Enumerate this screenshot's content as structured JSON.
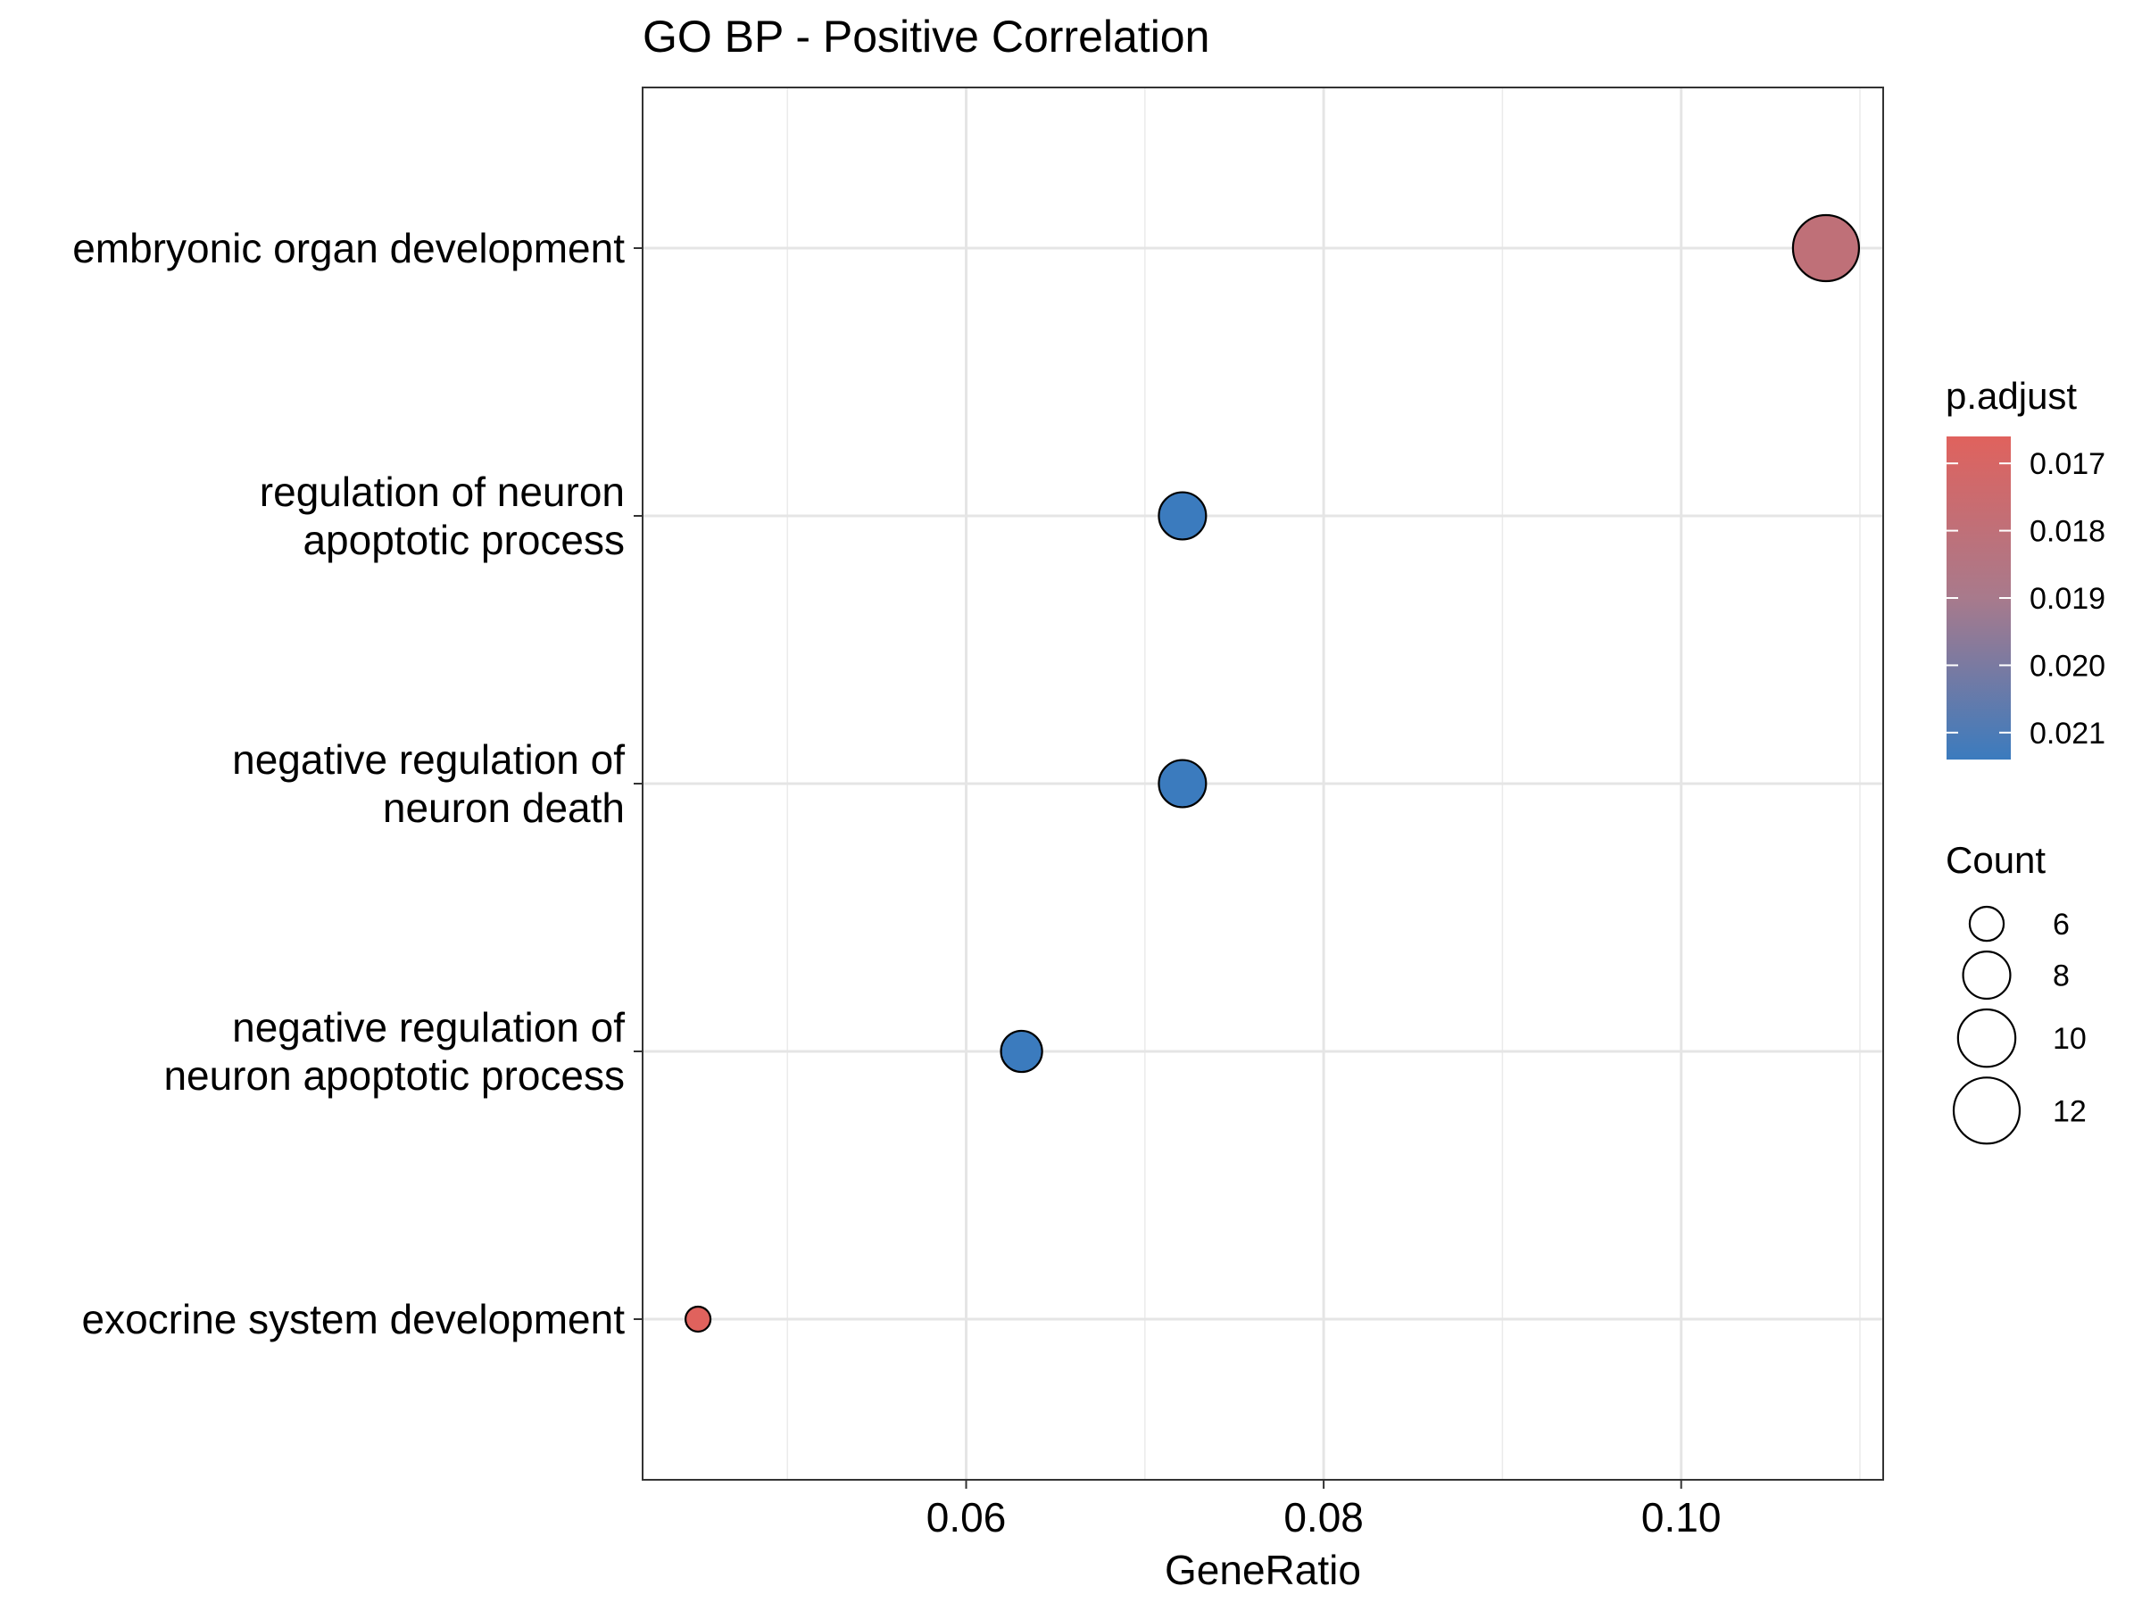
{
  "chart_data": {
    "type": "scatter",
    "title": "GO BP - Positive Correlation",
    "xlabel": "GeneRatio",
    "ylabel": "",
    "xlim": [
      0.0419,
      0.1113
    ],
    "xticks": [
      0.06,
      0.08,
      0.1
    ],
    "xtick_labels": [
      "0.06",
      "0.08",
      "0.10"
    ],
    "x_minor_gridlines": [
      0.05,
      0.07,
      0.09,
      0.11
    ],
    "grid": true,
    "categories": [
      "embryonic organ development",
      "regulation of neuron apoptotic process",
      "negative regulation of neuron death",
      "negative regulation of neuron apoptotic process",
      "exocrine system development"
    ],
    "category_display_lines": [
      [
        "embryonic organ development"
      ],
      [
        "regulation of neuron",
        "apoptotic process"
      ],
      [
        "negative regulation of",
        "neuron death"
      ],
      [
        "negative regulation of",
        "neuron apoptotic process"
      ],
      [
        "exocrine system development"
      ]
    ],
    "points": [
      {
        "category": "embryonic organ development",
        "x": 0.1081,
        "count": 12,
        "p_adjust": 0.018
      },
      {
        "category": "regulation of neuron apoptotic process",
        "x": 0.0721,
        "count": 8,
        "p_adjust": 0.0214
      },
      {
        "category": "negative regulation of neuron death",
        "x": 0.0721,
        "count": 8,
        "p_adjust": 0.0214
      },
      {
        "category": "negative regulation of neuron apoptotic process",
        "x": 0.0631,
        "count": 7,
        "p_adjust": 0.0214
      },
      {
        "category": "exocrine system development",
        "x": 0.045,
        "count": 5,
        "p_adjust": 0.0166
      }
    ],
    "legend_placement": "right",
    "color_legend": {
      "title": "p.adjust",
      "low_color": "#e0625d",
      "mid_color": "#a87a8c",
      "high_color": "#3b7bbe",
      "range": [
        0.0166,
        0.0214
      ],
      "ticks": [
        0.017,
        0.018,
        0.019,
        0.02,
        0.021
      ],
      "tick_labels": [
        "0.017",
        "0.018",
        "0.019",
        "0.020",
        "0.021"
      ]
    },
    "size_legend": {
      "title": "Count",
      "values": [
        6,
        8,
        10,
        12
      ],
      "labels": [
        "6",
        "8",
        "10",
        "12"
      ],
      "range": [
        5,
        12
      ]
    }
  }
}
